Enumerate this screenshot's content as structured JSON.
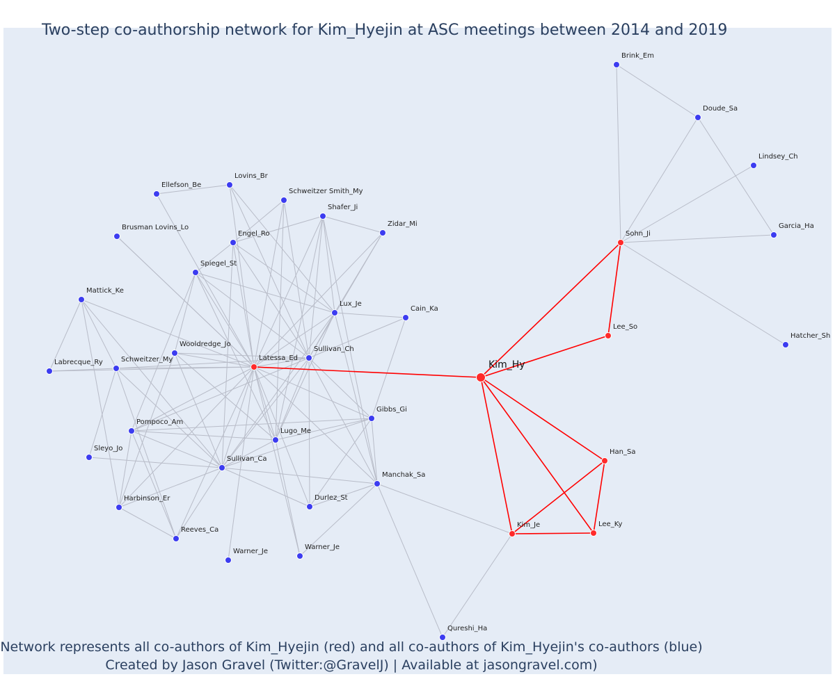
{
  "title": "Two-step co-authorship network for Kim_Hyejin at ASC meetings between 2014 and 2019",
  "footer": {
    "line1": "Network represents all co-authors of Kim_Hyejin (red) and all co-authors of Kim_Hyejin's co-authors (blue)",
    "line2": "Created by Jason Gravel (Twitter:@GravelJ) | Available at jasongravel.com)"
  },
  "colors": {
    "plot_background": "#e5ecf6",
    "focal_coauthor_nodes": "#ff2a2a",
    "second_step_nodes": "#3c3cf0",
    "focal_edges": "#ff0000",
    "other_edges": "#b8bcc8",
    "title_text": "#2a3f5f"
  },
  "network": {
    "center": "Kim_Hy",
    "nodes": [
      {
        "id": "Kim_Hy",
        "label": "Kim_Hy",
        "group": "center"
      },
      {
        "id": "Latessa_Ed",
        "label": "Latessa_Ed",
        "group": "red"
      },
      {
        "id": "Sohn_Ji",
        "label": "Sohn_Ji",
        "group": "red"
      },
      {
        "id": "Lee_So",
        "label": "Lee_So",
        "group": "red"
      },
      {
        "id": "Han_Sa",
        "label": "Han_Sa",
        "group": "red"
      },
      {
        "id": "Kim_Je",
        "label": "Kim_Je",
        "group": "red"
      },
      {
        "id": "Lee_Ky",
        "label": "Lee_Ky",
        "group": "red"
      },
      {
        "id": "Brink_Em",
        "label": "Brink_Em",
        "group": "blue"
      },
      {
        "id": "Doude_Sa",
        "label": "Doude_Sa",
        "group": "blue"
      },
      {
        "id": "Lindsey_Ch",
        "label": "Lindsey_Ch",
        "group": "blue"
      },
      {
        "id": "Garcia_Ha",
        "label": "Garcia_Ha",
        "group": "blue"
      },
      {
        "id": "Hatcher_Sh",
        "label": "Hatcher_Sh",
        "group": "blue"
      },
      {
        "id": "Qureshi_Ha",
        "label": "Qureshi_Ha",
        "group": "blue"
      },
      {
        "id": "Lovins_Br",
        "label": "Lovins_Br",
        "group": "blue"
      },
      {
        "id": "Ellefson_Be",
        "label": "Ellefson_Be",
        "group": "blue"
      },
      {
        "id": "SchweitzerSmith_My",
        "label": "Schweitzer Smith_My",
        "group": "blue"
      },
      {
        "id": "Shafer_Ji",
        "label": "Shafer_Ji",
        "group": "blue"
      },
      {
        "id": "Zidar_Mi",
        "label": "Zidar_Mi",
        "group": "blue"
      },
      {
        "id": "BrusmanLovins_Lo",
        "label": "Brusman Lovins_Lo",
        "group": "blue"
      },
      {
        "id": "Engel_Ro",
        "label": "Engel_Ro",
        "group": "blue"
      },
      {
        "id": "Spiegel_St",
        "label": "Spiegel_St",
        "group": "blue"
      },
      {
        "id": "Mattick_Ke",
        "label": "Mattick_Ke",
        "group": "blue"
      },
      {
        "id": "Lux_Je",
        "label": "Lux_Je",
        "group": "blue"
      },
      {
        "id": "Cain_Ka",
        "label": "Cain_Ka",
        "group": "blue"
      },
      {
        "id": "Wooldredge_Jo",
        "label": "Wooldredge_Jo",
        "group": "blue"
      },
      {
        "id": "Sullivan_Ch",
        "label": "Sullivan_Ch",
        "group": "blue"
      },
      {
        "id": "Labrecque_Ry",
        "label": "Labrecque_Ry",
        "group": "blue"
      },
      {
        "id": "Schweitzer_My",
        "label": "Schweitzer_My",
        "group": "blue"
      },
      {
        "id": "Gibbs_Gi",
        "label": "Gibbs_Gi",
        "group": "blue"
      },
      {
        "id": "Pompoco_Am",
        "label": "Pompoco_Am",
        "group": "blue"
      },
      {
        "id": "Lugo_Me",
        "label": "Lugo_Me",
        "group": "blue"
      },
      {
        "id": "Sleyo_Jo",
        "label": "Sleyo_Jo",
        "group": "blue"
      },
      {
        "id": "Sullivan_Ca",
        "label": "Sullivan_Ca",
        "group": "blue"
      },
      {
        "id": "Manchak_Sa",
        "label": "Manchak_Sa",
        "group": "blue"
      },
      {
        "id": "Harbinson_Er",
        "label": "Harbinson_Er",
        "group": "blue"
      },
      {
        "id": "Durlez_St",
        "label": "Durlez_St",
        "group": "blue"
      },
      {
        "id": "Reeves_Ca",
        "label": "Reeves_Ca",
        "group": "blue"
      },
      {
        "id": "Warner_Je_1",
        "label": "Warner_Je",
        "group": "blue"
      },
      {
        "id": "Warner_Je_2",
        "label": "Warner_Je",
        "group": "blue"
      }
    ],
    "edges": [
      [
        "Kim_Hy",
        "Latessa_Ed"
      ],
      [
        "Kim_Hy",
        "Sohn_Ji"
      ],
      [
        "Kim_Hy",
        "Lee_So"
      ],
      [
        "Kim_Hy",
        "Han_Sa"
      ],
      [
        "Kim_Hy",
        "Kim_Je"
      ],
      [
        "Kim_Hy",
        "Lee_Ky"
      ],
      [
        "Sohn_Ji",
        "Lee_So"
      ],
      [
        "Han_Sa",
        "Kim_Je"
      ],
      [
        "Han_Sa",
        "Lee_Ky"
      ],
      [
        "Kim_Je",
        "Lee_Ky"
      ],
      [
        "Sohn_Ji",
        "Brink_Em"
      ],
      [
        "Sohn_Ji",
        "Doude_Sa"
      ],
      [
        "Sohn_Ji",
        "Lindsey_Ch"
      ],
      [
        "Sohn_Ji",
        "Garcia_Ha"
      ],
      [
        "Sohn_Ji",
        "Hatcher_Sh"
      ],
      [
        "Brink_Em",
        "Doude_Sa"
      ],
      [
        "Doude_Sa",
        "Garcia_Ha"
      ],
      [
        "Kim_Je",
        "Qureshi_Ha"
      ],
      [
        "Kim_Je",
        "Manchak_Sa"
      ],
      [
        "Latessa_Ed",
        "Lovins_Br"
      ],
      [
        "Latessa_Ed",
        "SchweitzerSmith_My"
      ],
      [
        "Latessa_Ed",
        "Shafer_Ji"
      ],
      [
        "Latessa_Ed",
        "Zidar_Mi"
      ],
      [
        "Latessa_Ed",
        "BrusmanLovins_Lo"
      ],
      [
        "Latessa_Ed",
        "Engel_Ro"
      ],
      [
        "Latessa_Ed",
        "Spiegel_St"
      ],
      [
        "Latessa_Ed",
        "Mattick_Ke"
      ],
      [
        "Latessa_Ed",
        "Lux_Je"
      ],
      [
        "Latessa_Ed",
        "Wooldredge_Jo"
      ],
      [
        "Latessa_Ed",
        "Sullivan_Ch"
      ],
      [
        "Latessa_Ed",
        "Labrecque_Ry"
      ],
      [
        "Latessa_Ed",
        "Schweitzer_My"
      ],
      [
        "Latessa_Ed",
        "Gibbs_Gi"
      ],
      [
        "Latessa_Ed",
        "Pompoco_Am"
      ],
      [
        "Latessa_Ed",
        "Lugo_Me"
      ],
      [
        "Latessa_Ed",
        "Sullivan_Ca"
      ],
      [
        "Latessa_Ed",
        "Manchak_Sa"
      ],
      [
        "Latessa_Ed",
        "Harbinson_Er"
      ],
      [
        "Latessa_Ed",
        "Durlez_St"
      ],
      [
        "Latessa_Ed",
        "Reeves_Ca"
      ],
      [
        "Latessa_Ed",
        "Warner_Je_1"
      ],
      [
        "Latessa_Ed",
        "Warner_Je_2"
      ],
      [
        "Latessa_Ed",
        "Ellefson_Be"
      ],
      [
        "Ellefson_Be",
        "Lovins_Br"
      ],
      [
        "Lovins_Br",
        "Lux_Je"
      ],
      [
        "Lovins_Br",
        "Sullivan_Ch"
      ],
      [
        "Engel_Ro",
        "SchweitzerSmith_My"
      ],
      [
        "Engel_Ro",
        "Shafer_Ji"
      ],
      [
        "Engel_Ro",
        "Lux_Je"
      ],
      [
        "Engel_Ro",
        "Sullivan_Ch"
      ],
      [
        "Engel_Ro",
        "Sullivan_Ca"
      ],
      [
        "SchweitzerSmith_My",
        "Lugo_Me"
      ],
      [
        "SchweitzerSmith_My",
        "Sullivan_Ch"
      ],
      [
        "Shafer_Ji",
        "Zidar_Mi"
      ],
      [
        "Shafer_Ji",
        "Lux_Je"
      ],
      [
        "Shafer_Ji",
        "Sullivan_Ch"
      ],
      [
        "Shafer_Ji",
        "Lugo_Me"
      ],
      [
        "Shafer_Ji",
        "Manchak_Sa"
      ],
      [
        "Zidar_Mi",
        "Sullivan_Ch"
      ],
      [
        "Zidar_Mi",
        "Lux_Je"
      ],
      [
        "Spiegel_St",
        "Engel_Ro"
      ],
      [
        "Spiegel_St",
        "Lux_Je"
      ],
      [
        "Spiegel_St",
        "Sullivan_Ch"
      ],
      [
        "Spiegel_St",
        "Wooldredge_Jo"
      ],
      [
        "Spiegel_St",
        "Lugo_Me"
      ],
      [
        "Spiegel_St",
        "Pompoco_Am"
      ],
      [
        "Lux_Je",
        "Cain_Ka"
      ],
      [
        "Lux_Je",
        "Sullivan_Ch"
      ],
      [
        "Lux_Je",
        "Sullivan_Ca"
      ],
      [
        "Lux_Je",
        "Lugo_Me"
      ],
      [
        "Lux_Je",
        "Manchak_Sa"
      ],
      [
        "Cain_Ka",
        "Sullivan_Ch"
      ],
      [
        "Cain_Ka",
        "Gibbs_Gi"
      ],
      [
        "Sullivan_Ch",
        "Gibbs_Gi"
      ],
      [
        "Sullivan_Ch",
        "Lugo_Me"
      ],
      [
        "Sullivan_Ch",
        "Sullivan_Ca"
      ],
      [
        "Sullivan_Ch",
        "Manchak_Sa"
      ],
      [
        "Sullivan_Ch",
        "Durlez_St"
      ],
      [
        "Sullivan_Ch",
        "Wooldredge_Jo"
      ],
      [
        "Sullivan_Ch",
        "Pompoco_Am"
      ],
      [
        "Mattick_Ke",
        "Labrecque_Ry"
      ],
      [
        "Mattick_Ke",
        "Schweitzer_My"
      ],
      [
        "Mattick_Ke",
        "Sullivan_Ca"
      ],
      [
        "Mattick_Ke",
        "Harbinson_Er"
      ],
      [
        "Labrecque_Ry",
        "Schweitzer_My"
      ],
      [
        "Schweitzer_My",
        "Sleyo_Jo"
      ],
      [
        "Schweitzer_My",
        "Sullivan_Ca"
      ],
      [
        "Schweitzer_My",
        "Reeves_Ca"
      ],
      [
        "Schweitzer_My",
        "Sullivan_Ch"
      ],
      [
        "Wooldredge_Jo",
        "Lugo_Me"
      ],
      [
        "Wooldredge_Jo",
        "Sullivan_Ca"
      ],
      [
        "Wooldredge_Jo",
        "Harbinson_Er"
      ],
      [
        "Pompoco_Am",
        "Lugo_Me"
      ],
      [
        "Pompoco_Am",
        "Sullivan_Ca"
      ],
      [
        "Pompoco_Am",
        "Harbinson_Er"
      ],
      [
        "Pompoco_Am",
        "Reeves_Ca"
      ],
      [
        "Pompoco_Am",
        "Gibbs_Gi"
      ],
      [
        "Lugo_Me",
        "Gibbs_Gi"
      ],
      [
        "Lugo_Me",
        "Sullivan_Ca"
      ],
      [
        "Lugo_Me",
        "Warner_Je_2"
      ],
      [
        "Sleyo_Jo",
        "Sullivan_Ca"
      ],
      [
        "Sullivan_Ca",
        "Manchak_Sa"
      ],
      [
        "Sullivan_Ca",
        "Durlez_St"
      ],
      [
        "Sullivan_Ca",
        "Gibbs_Gi"
      ],
      [
        "Sullivan_Ca",
        "Reeves_Ca"
      ],
      [
        "Sullivan_Ca",
        "Harbinson_Er"
      ],
      [
        "Manchak_Sa",
        "Durlez_St"
      ],
      [
        "Manchak_Sa",
        "Warner_Je_2"
      ],
      [
        "Manchak_Sa",
        "Qureshi_Ha"
      ],
      [
        "Manchak_Sa",
        "Gibbs_Gi"
      ],
      [
        "Harbinson_Er",
        "Reeves_Ca"
      ],
      [
        "BrusmanLovins_Lo",
        "Latessa_Ed"
      ],
      [
        "Gibbs_Gi",
        "Durlez_St"
      ]
    ]
  }
}
